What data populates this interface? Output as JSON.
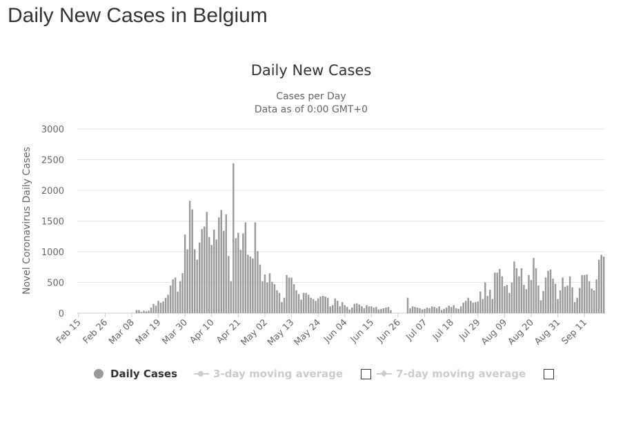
{
  "page": {
    "title": "Daily New Cases in Belgium"
  },
  "chart_data": {
    "type": "bar",
    "title": "Daily New Cases",
    "subtitle_lines": [
      "Cases per Day",
      "Data as of 0:00 GMT+0"
    ],
    "ylabel": "Novel Coronavirus Daily Cases",
    "xlabel": "",
    "ylim": [
      0,
      3000
    ],
    "yticks": [
      0,
      500,
      1000,
      1500,
      2000,
      2500,
      3000
    ],
    "tick_labels": [
      "Feb 15",
      "Feb 26",
      "Mar 08",
      "Mar 19",
      "Mar 30",
      "Apr 10",
      "Apr 21",
      "May 02",
      "May 13",
      "May 24",
      "Jun 04",
      "Jun 15",
      "Jun 26",
      "Jul 07",
      "Jul 18",
      "Jul 29",
      "Aug 09",
      "Aug 20",
      "Aug 31",
      "Sep 11"
    ],
    "tick_every_days": 11,
    "grid": true,
    "bar_color": "#999999",
    "series": [
      {
        "name": "Daily Cases",
        "start_date": "Feb 15",
        "values": [
          0,
          0,
          0,
          0,
          0,
          0,
          0,
          0,
          0,
          0,
          0,
          0,
          0,
          0,
          0,
          0,
          0,
          2,
          0,
          1,
          1,
          1,
          1,
          1,
          50,
          50,
          20,
          40,
          30,
          40,
          90,
          150,
          120,
          200,
          170,
          190,
          250,
          300,
          450,
          550,
          580,
          350,
          520,
          650,
          1280,
          1040,
          1830,
          1690,
          1040,
          870,
          1150,
          1370,
          1410,
          1650,
          1240,
          1110,
          1360,
          1200,
          1560,
          1680,
          1340,
          1610,
          930,
          520,
          2440,
          1220,
          1310,
          1030,
          1300,
          1480,
          950,
          920,
          890,
          1480,
          1010,
          790,
          520,
          630,
          500,
          650,
          510,
          470,
          370,
          330,
          180,
          250,
          620,
          580,
          580,
          470,
          370,
          310,
          220,
          330,
          330,
          300,
          250,
          230,
          200,
          240,
          270,
          280,
          270,
          250,
          110,
          130,
          240,
          200,
          110,
          180,
          130,
          100,
          60,
          90,
          150,
          160,
          140,
          110,
          80,
          130,
          110,
          110,
          90,
          100,
          60,
          70,
          80,
          90,
          100,
          50,
          0,
          0,
          0,
          0,
          0,
          0,
          250,
          80,
          110,
          100,
          90,
          80,
          60,
          70,
          90,
          80,
          110,
          100,
          80,
          110,
          50,
          70,
          90,
          120,
          100,
          130,
          80,
          70,
          110,
          170,
          200,
          250,
          200,
          170,
          180,
          190,
          350,
          230,
          500,
          280,
          380,
          230,
          660,
          660,
          720,
          600,
          440,
          460,
          330,
          500,
          840,
          730,
          600,
          730,
          460,
          390,
          620,
          540,
          900,
          730,
          450,
          210,
          360,
          580,
          690,
          710,
          560,
          480,
          230,
          370,
          580,
          430,
          450,
          600,
          420,
          180,
          250,
          410,
          620,
          620,
          630,
          520,
          400,
          370,
          550,
          870,
          950,
          920
        ]
      }
    ],
    "legend": {
      "position": "bottom-left",
      "items": [
        {
          "label": "Daily Cases",
          "active": true
        },
        {
          "label": "3-day moving average",
          "active": false
        },
        {
          "label": "7-day moving average",
          "active": false
        }
      ]
    }
  }
}
